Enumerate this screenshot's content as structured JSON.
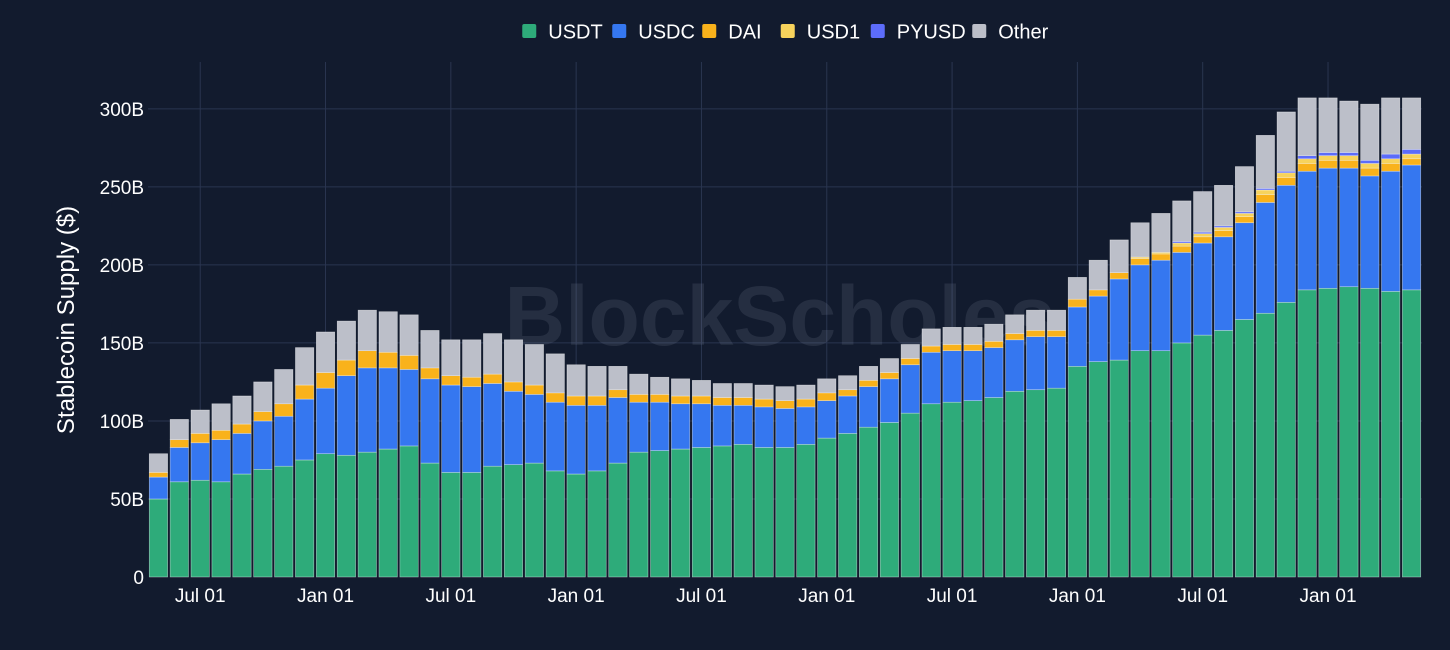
{
  "watermark": "BlockScholes",
  "chart_data": {
    "type": "bar",
    "stacked": true,
    "title": "",
    "xlabel": "",
    "ylabel": "Stablecoin Supply ($)",
    "ylim": [
      0,
      330
    ],
    "yunit": "B",
    "yticks": [
      0,
      50,
      100,
      150,
      200,
      250,
      300
    ],
    "ytick_labels": [
      "0",
      "50B",
      "100B",
      "150B",
      "200B",
      "250B",
      "300B"
    ],
    "grid": true,
    "legend_position": "top-center",
    "x_tick_labels": [
      {
        "label": "Jul 01",
        "at": 2
      },
      {
        "label": "Jan 01",
        "at": 8
      },
      {
        "label": "Jul 01",
        "at": 14
      },
      {
        "label": "Jan 01",
        "at": 20
      },
      {
        "label": "Jul 01",
        "at": 26
      },
      {
        "label": "Jan 01",
        "at": 32
      },
      {
        "label": "Jul 01",
        "at": 38
      },
      {
        "label": "Jan 01",
        "at": 44
      },
      {
        "label": "Jul 01",
        "at": 50
      },
      {
        "label": "Jan 01",
        "at": 56
      }
    ],
    "series": [
      {
        "name": "USDT",
        "color": "#2eab7a",
        "values": [
          50,
          61,
          62,
          61,
          66,
          69,
          71,
          75,
          79,
          78,
          80,
          82,
          84,
          73,
          67,
          67,
          71,
          72,
          73,
          68,
          66,
          68,
          73,
          80,
          81,
          82,
          83,
          84,
          85,
          83,
          83,
          85,
          89,
          92,
          96,
          99,
          105,
          111,
          112,
          113,
          115,
          119,
          120,
          121,
          135,
          138,
          139,
          145,
          145,
          150,
          155,
          158,
          165,
          169,
          176,
          184,
          185,
          186,
          185,
          183,
          184
        ]
      },
      {
        "name": "USDC",
        "color": "#3577f0",
        "values": [
          14,
          22,
          24,
          27,
          26,
          31,
          32,
          39,
          42,
          51,
          54,
          52,
          49,
          54,
          56,
          55,
          53,
          47,
          44,
          44,
          44,
          42,
          42,
          32,
          31,
          29,
          28,
          26,
          25,
          26,
          25,
          24,
          24,
          24,
          26,
          28,
          31,
          33,
          33,
          32,
          32,
          33,
          34,
          33,
          38,
          42,
          52,
          55,
          58,
          58,
          59,
          60,
          62,
          71,
          75,
          76,
          77,
          76,
          72,
          77,
          80
        ]
      },
      {
        "name": "DAI",
        "color": "#f9b21b",
        "values": [
          3,
          5,
          6,
          6,
          6,
          6,
          8,
          9,
          10,
          10,
          11,
          10,
          9,
          7,
          6,
          6,
          6,
          6,
          6,
          6,
          6,
          6,
          5,
          5,
          5,
          5,
          5,
          5,
          5,
          5,
          5,
          5,
          5,
          4,
          4,
          4,
          4,
          4,
          4,
          4,
          4,
          4,
          4,
          4,
          5,
          4,
          4,
          4,
          4,
          4,
          4,
          4,
          4,
          5,
          5,
          5,
          5,
          5,
          5,
          5,
          4
        ]
      },
      {
        "name": "USD1",
        "color": "#f7d35c",
        "values": [
          0,
          0,
          0,
          0,
          0,
          0,
          0,
          0,
          0,
          0,
          0,
          0,
          0,
          0,
          0,
          0,
          0,
          0,
          0,
          0,
          0,
          0,
          0,
          0,
          0,
          0,
          0,
          0,
          0,
          0,
          0,
          0,
          0,
          0,
          0,
          0,
          0,
          0,
          0,
          0,
          0,
          0,
          0,
          0,
          0,
          0,
          0,
          1,
          1,
          2,
          2,
          2,
          2,
          3,
          3,
          3,
          3,
          3,
          3,
          3,
          3
        ]
      },
      {
        "name": "PYUSD",
        "color": "#5c6cfa",
        "values": [
          0,
          0,
          0,
          0,
          0,
          0,
          0,
          0,
          0,
          0,
          0,
          0,
          0,
          0,
          0,
          0,
          0,
          0,
          0,
          0,
          0,
          0,
          0,
          0,
          0,
          0,
          0,
          0,
          0,
          0,
          0,
          0,
          0,
          0,
          0,
          0,
          0,
          0,
          0,
          0,
          0,
          0,
          0,
          0,
          0,
          0,
          0,
          0,
          0,
          1,
          1,
          1,
          1,
          1,
          1,
          2,
          2,
          2,
          2,
          3,
          3
        ]
      },
      {
        "name": "Other",
        "color": "#bcbfc9",
        "values": [
          12,
          13,
          15,
          17,
          18,
          19,
          22,
          24,
          26,
          25,
          26,
          26,
          26,
          24,
          23,
          24,
          26,
          27,
          26,
          25,
          20,
          19,
          15,
          13,
          11,
          11,
          10,
          9,
          9,
          9,
          9,
          9,
          9,
          9,
          9,
          9,
          9,
          11,
          11,
          11,
          11,
          12,
          13,
          13,
          14,
          19,
          21,
          22,
          25,
          26,
          26,
          26,
          29,
          34,
          38,
          37,
          35,
          33,
          36,
          36,
          33
        ]
      }
    ]
  }
}
